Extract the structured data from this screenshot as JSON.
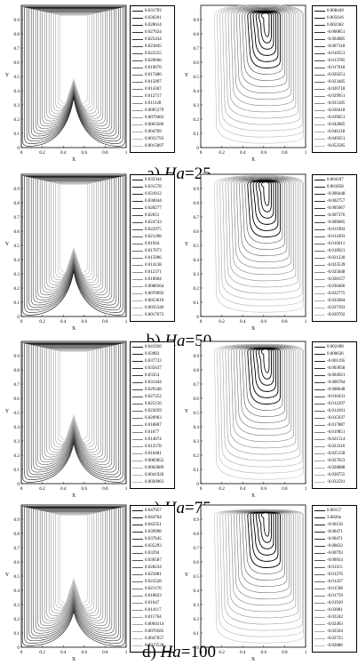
{
  "figure": {
    "captions": [
      {
        "prefix": "a) ",
        "var": "Ha",
        "eq": "=25"
      },
      {
        "prefix": "b) ",
        "var": "Ha",
        "eq": "=50"
      },
      {
        "prefix": "c) ",
        "var": "Ha",
        "eq": "=75"
      },
      {
        "prefix": "d) ",
        "var": "Ha",
        "eq": "=100"
      }
    ],
    "axes": {
      "xlabel": "X",
      "ylabel": "Y",
      "x_ticks": [
        "0",
        "0.2",
        "0.4",
        "0.6",
        "0.8",
        "1"
      ],
      "y_ticks": [
        "0",
        "0.1",
        "0.2",
        "0.3",
        "0.4",
        "0.5",
        "0.6",
        "0.7",
        "0.8",
        "0.9"
      ]
    },
    "legends": [
      [
        "0.031793",
        "0.030201",
        "0.028614",
        "0.027024",
        "0.025434",
        "0.023845",
        "0.022255",
        "0.020666",
        "0.019076",
        "0.017486",
        "0.015897",
        "0.014307",
        "0.012717",
        "0.011128",
        "0.0095379",
        "0.0079483",
        "0.0063586",
        "0.004769",
        "0.0031793",
        "0.0015897"
      ],
      [
        "0.008449",
        "0.005616",
        "0.002362",
        "-0.000851",
        "-0.004085",
        "-0.007318",
        "-0.010551",
        "-0.013785",
        "-0.017018",
        "-0.020251",
        "-0.023485",
        "-0.026718",
        "-0.029951",
        "-0.033185",
        "-0.036418",
        "-0.039651",
        "-0.042885",
        "-0.046118",
        "-0.049351",
        "-0.052585"
      ],
      [
        "0.033344",
        "0.031578",
        "0.031812",
        "0.030044",
        "0.028277",
        "0.02651",
        "0.024743",
        "0.022975",
        "0.021208",
        "0.01944",
        "0.017673",
        "0.015906",
        "0.014138",
        "0.012371",
        "0.010604",
        "0.0088364",
        "0.0070692",
        "0.0053019",
        "0.0035346",
        "0.0017673"
      ],
      [
        "0.004167",
        "0.001858",
        "-0.000448",
        "-0.002757",
        "-0.005067",
        "-0.007376",
        "-0.009685",
        "-0.011994",
        "-0.014303",
        "-0.016611",
        "-0.018921",
        "-0.021230",
        "-0.023539",
        "-0.025848",
        "-0.028157",
        "-0.030466",
        "-0.032775",
        "-0.035084",
        "-0.037393",
        "-0.039702"
      ],
      [
        "0.041926",
        "0.03983",
        "0.037733",
        "0.035637",
        "0.03354",
        "0.031444",
        "0.029348",
        "0.027252",
        "0.025156",
        "0.023059",
        "0.020963",
        "0.018867",
        "0.01677",
        "0.014674",
        "0.012578",
        "0.010481",
        "0.0083852",
        "0.0062889",
        "0.0041926",
        "0.0020963"
      ],
      [
        "0.002498",
        "0.000636",
        "-0.001195",
        "-0.003058",
        "-0.004921",
        "-0.006784",
        "-0.008648",
        "-0.010431",
        "-0.012297",
        "-0.014161",
        "-0.015937",
        "-0.017887",
        "-0.019851",
        "-0.021514",
        "-0.023316",
        "-0.025158",
        "-0.027023",
        "-0.028888",
        "-0.030755",
        "-0.032591"
      ],
      [
        "0.047057",
        "0.044704",
        "0.042351",
        "0.039998",
        "0.037645",
        "0.035293",
        "0.03294",
        "0.030587",
        "0.028234",
        "0.025881",
        "0.023528",
        "0.021176",
        "0.018823",
        "0.01647",
        "0.014117",
        "0.011764",
        "0.0094114",
        "0.0070585",
        "0.0047057",
        "0.0023528"
      ],
      [
        "0.00157",
        "3.6826e",
        "-0.00150",
        "-0.00471",
        "-0.00471",
        "-0.00632",
        "-0.00793",
        "-0.00954",
        "-0.01115",
        "-0.01276",
        "-0.01437",
        "-0.01598",
        "-0.01759",
        "-0.01920",
        "-0.02081",
        "-0.02242",
        "-0.02403",
        "-0.02564",
        "-0.02725",
        "-0.02886"
      ]
    ]
  }
}
